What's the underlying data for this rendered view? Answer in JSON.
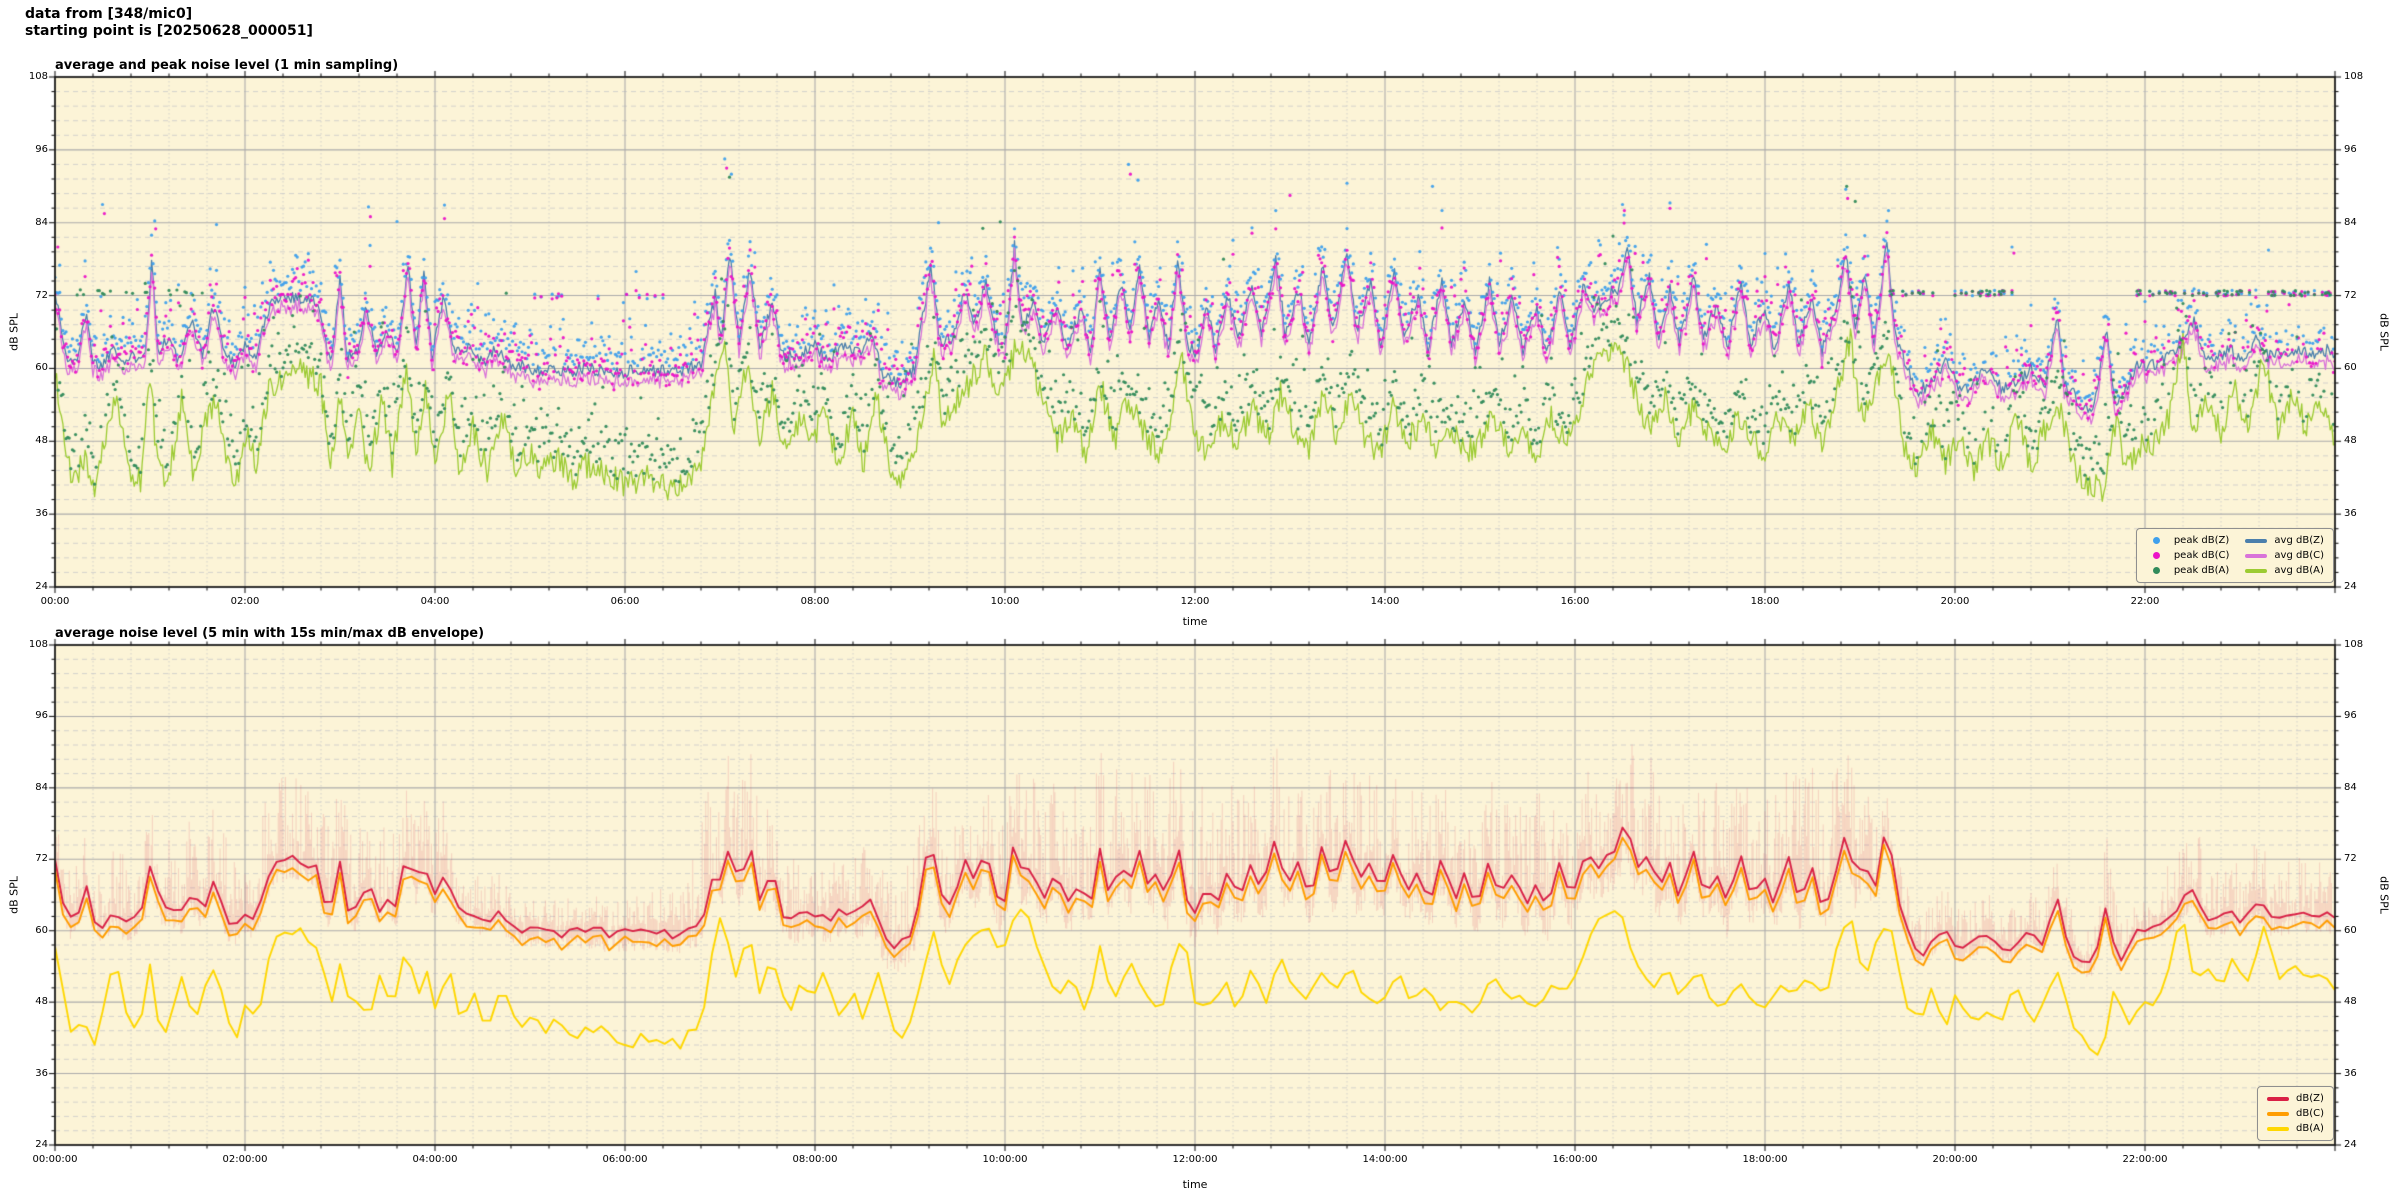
{
  "header": {
    "line1": "data from [348/mic0]",
    "line2": "starting point is [20250628_000051]"
  },
  "palette": {
    "figure_bg": "#ffffff",
    "axes_bg": "#FCF4D7",
    "grid_major": "#ABABAB",
    "grid_minor": "#C9C9C9",
    "spine": "#1A1A1A",
    "text": "#000000",
    "envelope": "rgba(217,32,69,0.15)"
  },
  "keypoints": {
    "avg_dbZ": [
      0,
      73,
      0.07,
      66,
      0.13,
      61,
      0.25,
      62,
      0.33,
      70,
      0.4,
      61,
      0.5,
      60.5,
      0.62,
      64,
      0.72,
      61,
      0.85,
      62,
      0.95,
      63,
      1.02,
      78,
      1.08,
      63,
      1.2,
      65,
      1.3,
      61,
      1.45,
      68,
      1.55,
      62,
      1.68,
      71,
      1.78,
      62.5,
      1.9,
      61,
      2.0,
      64,
      2.1,
      61.5,
      2.2,
      67,
      2.3,
      71.5,
      2.45,
      72,
      2.6,
      71.5,
      2.75,
      71,
      2.83,
      66,
      2.9,
      60.5,
      3.0,
      75,
      3.07,
      62,
      3.18,
      63,
      3.28,
      70,
      3.38,
      62.5,
      3.5,
      66,
      3.6,
      62,
      3.72,
      77,
      3.8,
      63,
      3.88,
      76,
      3.97,
      62,
      4.1,
      72,
      4.2,
      62.5,
      4.35,
      64,
      4.5,
      61,
      4.65,
      63,
      4.8,
      60.5,
      5.0,
      60,
      5.3,
      59.5,
      5.6,
      60,
      5.9,
      59.3,
      6.2,
      59.8,
      6.5,
      59.5,
      6.8,
      60.5,
      6.95,
      72,
      7.02,
      64,
      7.1,
      79,
      7.2,
      65,
      7.32,
      77,
      7.42,
      63.5,
      7.55,
      71,
      7.65,
      62,
      7.8,
      62,
      8.0,
      63.5,
      8.15,
      61.5,
      8.3,
      64,
      8.45,
      62.5,
      8.6,
      65.5,
      8.72,
      58.5,
      8.9,
      57.5,
      9.05,
      60,
      9.22,
      77,
      9.32,
      64,
      9.45,
      65,
      9.58,
      73.5,
      9.68,
      67,
      9.8,
      74,
      9.9,
      66,
      10.0,
      63,
      10.1,
      80,
      10.18,
      66,
      10.3,
      72,
      10.4,
      64,
      10.55,
      71,
      10.65,
      63,
      10.8,
      70,
      10.9,
      62,
      11.0,
      76,
      11.1,
      64,
      11.22,
      74,
      11.32,
      66,
      11.42,
      77,
      11.52,
      65,
      11.62,
      72,
      11.72,
      63,
      11.82,
      78,
      11.92,
      64,
      12.02,
      62,
      12.12,
      70,
      12.22,
      63,
      12.35,
      72,
      12.45,
      64,
      12.6,
      74,
      12.7,
      65,
      12.85,
      78,
      12.95,
      66,
      13.1,
      73,
      13.2,
      64,
      13.35,
      77,
      13.45,
      66,
      13.6,
      79,
      13.7,
      66,
      13.85,
      74,
      13.95,
      64,
      14.1,
      76,
      14.2,
      65,
      14.35,
      72,
      14.45,
      63,
      14.6,
      74,
      14.7,
      64,
      14.85,
      71,
      14.95,
      63,
      15.1,
      74,
      15.2,
      64,
      15.35,
      72,
      15.45,
      63,
      15.6,
      70,
      15.7,
      62,
      15.85,
      73,
      15.95,
      64,
      16.1,
      74,
      16.2,
      70,
      16.32,
      72,
      16.45,
      73,
      16.55,
      80,
      16.65,
      68,
      16.78,
      75,
      16.88,
      65,
      17.0,
      73,
      17.1,
      64,
      17.25,
      75,
      17.35,
      65,
      17.5,
      71,
      17.6,
      63,
      17.75,
      74,
      17.85,
      64,
      18.0,
      70,
      18.1,
      63,
      18.25,
      74,
      18.35,
      64,
      18.5,
      72,
      18.6,
      63,
      18.75,
      70,
      18.85,
      79,
      18.95,
      66,
      19.05,
      75,
      19.15,
      64,
      19.28,
      81,
      19.38,
      65,
      19.5,
      60,
      19.6,
      56,
      19.75,
      57.5,
      19.9,
      61,
      20.05,
      56.5,
      20.2,
      57.5,
      20.35,
      60,
      20.5,
      56.5,
      20.65,
      57.5,
      20.8,
      60,
      20.95,
      57,
      21.07,
      69,
      21.15,
      58,
      21.3,
      54.5,
      21.45,
      53.5,
      21.6,
      66,
      21.68,
      54,
      21.8,
      56.5,
      21.92,
      60.3,
      22.1,
      60.8,
      22.25,
      62,
      22.4,
      65,
      22.52,
      67.5,
      22.62,
      62.5,
      22.75,
      62,
      22.9,
      63,
      23.05,
      61.8,
      23.18,
      65.5,
      23.3,
      62,
      23.45,
      62.5,
      23.6,
      63.2,
      23.75,
      62.3,
      23.9,
      63,
      24,
      62.5
    ],
    "avg_dbA": [
      0,
      60,
      0.07,
      50,
      0.18,
      41,
      0.3,
      45,
      0.42,
      40.5,
      0.55,
      51,
      0.65,
      54,
      0.78,
      44,
      0.9,
      41,
      1.0,
      59,
      1.08,
      44,
      1.2,
      42,
      1.33,
      55,
      1.45,
      43,
      1.58,
      51,
      1.7,
      55,
      1.8,
      44,
      1.92,
      42,
      2.02,
      50,
      2.12,
      43,
      2.25,
      57,
      2.4,
      58.5,
      2.55,
      60,
      2.7,
      58.5,
      2.8,
      57,
      2.9,
      44,
      3.0,
      56,
      3.1,
      45,
      3.2,
      52,
      3.3,
      43,
      3.45,
      55,
      3.55,
      44,
      3.7,
      61,
      3.8,
      46,
      3.9,
      57,
      4.0,
      44,
      4.15,
      56,
      4.25,
      44,
      4.4,
      50,
      4.55,
      43,
      4.7,
      52,
      4.85,
      44,
      5.0,
      46,
      5.15,
      43,
      5.3,
      45,
      5.45,
      42,
      5.6,
      44,
      5.8,
      42.5,
      6.0,
      41,
      6.2,
      42,
      6.4,
      40.5,
      6.6,
      41,
      6.8,
      45,
      6.95,
      58,
      7.05,
      65,
      7.15,
      50,
      7.3,
      62,
      7.4,
      48,
      7.55,
      56,
      7.7,
      45,
      7.85,
      52,
      8.0,
      48,
      8.1,
      55,
      8.25,
      43,
      8.4,
      53,
      8.5,
      44,
      8.65,
      55,
      8.8,
      43,
      8.95,
      42,
      9.1,
      50,
      9.25,
      62,
      9.35,
      50,
      9.5,
      55,
      9.65,
      58,
      9.8,
      62,
      9.95,
      55,
      10.1,
      63,
      10.25,
      63,
      10.4,
      55,
      10.55,
      48,
      10.7,
      52,
      10.85,
      46,
      11.0,
      58,
      11.15,
      48,
      11.3,
      55,
      11.45,
      50,
      11.6,
      46,
      11.75,
      52,
      11.85,
      62,
      12.0,
      48,
      12.15,
      46,
      12.3,
      52,
      12.45,
      47,
      12.6,
      54,
      12.75,
      48,
      12.9,
      56,
      13.05,
      50,
      13.2,
      47,
      13.35,
      55,
      13.5,
      49,
      13.65,
      56,
      13.8,
      48,
      13.95,
      46,
      14.1,
      54,
      14.25,
      48,
      14.4,
      52,
      14.55,
      46,
      14.7,
      50,
      14.85,
      46,
      15.0,
      48,
      15.15,
      52,
      15.3,
      47,
      15.45,
      50,
      15.6,
      46,
      15.75,
      52,
      15.9,
      48,
      16.05,
      54,
      16.2,
      60,
      16.35,
      63,
      16.5,
      62,
      16.65,
      55,
      16.8,
      50,
      16.95,
      55,
      17.1,
      48,
      17.25,
      54,
      17.4,
      50,
      17.55,
      46,
      17.7,
      52,
      17.85,
      48,
      18.0,
      46,
      18.15,
      52,
      18.3,
      48,
      18.45,
      54,
      18.6,
      48,
      18.75,
      56,
      18.9,
      65,
      19.0,
      52,
      19.15,
      56,
      19.3,
      64,
      19.45,
      48,
      19.6,
      44,
      19.75,
      50,
      19.9,
      44,
      20.05,
      50,
      20.2,
      43,
      20.35,
      48,
      20.5,
      44,
      20.65,
      52,
      20.8,
      44,
      20.95,
      50,
      21.1,
      54,
      21.25,
      44,
      21.4,
      40.5,
      21.55,
      40,
      21.7,
      52,
      21.8,
      43,
      21.95,
      47.5,
      22.1,
      48,
      22.25,
      52,
      22.4,
      65,
      22.5,
      50,
      22.65,
      55,
      22.8,
      50,
      22.95,
      56,
      23.1,
      50,
      23.25,
      62,
      23.4,
      50,
      23.55,
      56,
      23.7,
      50,
      23.85,
      54,
      24,
      49
    ],
    "env_up": [
      0,
      8,
      0.5,
      9,
      1,
      12,
      1.5,
      12,
      2,
      13,
      2.5,
      13,
      3,
      14,
      3.5,
      13,
      4,
      12,
      4.4,
      8,
      4.8,
      5,
      5.5,
      5,
      6.2,
      5,
      6.6,
      8,
      6.9,
      18,
      7.3,
      16,
      7.7,
      10,
      8.2,
      9,
      8.7,
      10,
      9.2,
      12,
      9.6,
      13,
      10,
      13,
      10.5,
      16,
      11,
      19,
      11.5,
      18,
      12,
      17,
      12.5,
      17,
      13,
      17,
      13.5,
      16,
      14,
      15,
      14.5,
      14,
      15,
      14,
      15.5,
      15,
      16,
      16,
      16.5,
      17,
      17,
      16,
      17.5,
      15,
      18,
      16,
      18.4,
      19,
      18.8,
      17,
      19.1,
      12,
      19.3,
      7,
      19.7,
      6,
      20.2,
      6,
      20.7,
      6.5,
      21.1,
      7,
      21.4,
      5,
      21.6,
      14,
      21.8,
      4,
      22.05,
      3,
      22.3,
      12,
      22.55,
      10,
      22.8,
      9,
      23.2,
      9,
      23.6,
      9,
      24,
      9
    ],
    "env_dn": [
      0,
      3,
      2,
      4,
      4.5,
      2.5,
      6.5,
      3.5,
      9,
      5,
      12,
      6,
      16,
      6,
      18.8,
      6,
      19.4,
      2.5,
      21.5,
      2,
      22,
      2.5,
      22.5,
      3.5,
      24,
      3.5
    ]
  },
  "chart_data": [
    {
      "type": "line+scatter",
      "title": "average and peak noise level (1 min sampling)",
      "xlabel": "time",
      "ylabel": "dB SPL",
      "xlim": [
        0,
        24
      ],
      "ylim": [
        24,
        108
      ],
      "grid": true,
      "legend_position": "lower right",
      "xticks": {
        "values": [
          0,
          2,
          4,
          6,
          8,
          10,
          12,
          14,
          16,
          18,
          20,
          22
        ],
        "labels": [
          "00:00",
          "02:00",
          "04:00",
          "06:00",
          "08:00",
          "10:00",
          "12:00",
          "14:00",
          "16:00",
          "18:00",
          "20:00",
          "22:00"
        ]
      },
      "yticks": [
        24,
        36,
        48,
        60,
        72,
        84,
        96,
        108
      ],
      "minor_x_step": 0.4,
      "minor_y_step": 2.4,
      "sampling_minutes": 1,
      "seed": 1337,
      "series": [
        {
          "name": "avg dB(Z)",
          "color": "#4B7FAC",
          "kp": "avg_dbZ",
          "noise": 1.1,
          "width": 1.3
        },
        {
          "name": "avg dB(C)",
          "color": "#D973D9",
          "derive_from": "avg dB(Z)",
          "offset": -1.5,
          "noise": 0.7,
          "width": 1.3
        },
        {
          "name": "avg dB(A)",
          "color": "#9CCB32",
          "kp": "avg_dbA",
          "noise": 2.3,
          "width": 1.3
        }
      ],
      "scatter": [
        {
          "name": "peak dB(Z)",
          "color": "#3FA0EC",
          "base": "avg dB(Z)",
          "lift": 1.2,
          "tail": 2.0,
          "max": 94.5
        },
        {
          "name": "peak dB(C)",
          "color": "#EC13C8",
          "base": "peak dB(Z)",
          "drop_min": 0.8,
          "drop_rand": 3.2
        },
        {
          "name": "peak dB(A)",
          "color": "#318B5B",
          "base": "avg dB(A)",
          "lift": 2.0,
          "tail": 3.0,
          "max": 92
        }
      ],
      "peak_bands": [
        {
          "range": [
            0.2,
            1.6
          ],
          "apply": [
            "peak dB(A)"
          ],
          "value": 72.5,
          "prob": 0.3
        },
        {
          "range": [
            5.0,
            6.4
          ],
          "apply": [
            "peak dB(Z)",
            "peak dB(C)"
          ],
          "value": 71.9,
          "prob": 0.2
        },
        {
          "range": [
            19.3,
            20.7
          ],
          "apply": [
            "peak dB(Z)",
            "peak dB(C)",
            "peak dB(A)"
          ],
          "value": 72.4,
          "prob": 0.35
        },
        {
          "range": [
            21.9,
            24
          ],
          "apply": [
            "peak dB(Z)",
            "peak dB(C)",
            "peak dB(A)"
          ],
          "value": 72.4,
          "prob": 0.4
        }
      ],
      "peak_outliers": [
        {
          "series": "peak dB(Z)",
          "points": [
            [
              0.05,
              77
            ],
            [
              0.5,
              87
            ],
            [
              1.05,
              84.3
            ],
            [
              1.7,
              83.7
            ],
            [
              3.3,
              86.6
            ],
            [
              3.6,
              84.2
            ],
            [
              7.05,
              94.5
            ],
            [
              7.12,
              92
            ],
            [
              9.3,
              84
            ],
            [
              11.3,
              93.6
            ],
            [
              11.4,
              91
            ],
            [
              13.6,
              90.5
            ],
            [
              14.5,
              90
            ],
            [
              16.5,
              87
            ],
            [
              18.85,
              89.5
            ],
            [
              19.3,
              86
            ],
            [
              20.6,
              80
            ],
            [
              23.3,
              79.5
            ]
          ]
        },
        {
          "series": "peak dB(C)",
          "points": [
            [
              0.03,
              80
            ],
            [
              0.52,
              85.5
            ],
            [
              1.06,
              83
            ],
            [
              3.32,
              85
            ],
            [
              7.07,
              93
            ],
            [
              11.32,
              92
            ],
            [
              13.0,
              88.5
            ],
            [
              16.52,
              86
            ],
            [
              18.87,
              88
            ],
            [
              20.62,
              79
            ]
          ]
        },
        {
          "series": "peak dB(A)",
          "points": [
            [
              0.95,
              74
            ],
            [
              7.1,
              91.5
            ],
            [
              12.3,
              78
            ],
            [
              18.86,
              90
            ],
            [
              18.95,
              87.5
            ]
          ]
        }
      ],
      "legend": {
        "columns": [
          [
            {
              "label": "peak dB(Z)",
              "marker": "dot",
              "color": "#3FA0EC"
            },
            {
              "label": "peak dB(C)",
              "marker": "dot",
              "color": "#EC13C8"
            },
            {
              "label": "peak dB(A)",
              "marker": "dot",
              "color": "#318B5B"
            }
          ],
          [
            {
              "label": "avg dB(Z)",
              "marker": "line",
              "color": "#4B7FAC"
            },
            {
              "label": "avg dB(C)",
              "marker": "line",
              "color": "#D973D9"
            },
            {
              "label": "avg dB(A)",
              "marker": "line",
              "color": "#9CCB32"
            }
          ]
        ]
      }
    },
    {
      "type": "line+envelope",
      "title": "average noise level (5 min with 15s min/max dB envelope)",
      "xlabel": "time",
      "ylabel": "dB SPL",
      "xlim": [
        0,
        24
      ],
      "ylim": [
        24,
        108
      ],
      "grid": true,
      "legend_position": "lower right",
      "xticks": {
        "values": [
          0,
          2,
          4,
          6,
          8,
          10,
          12,
          14,
          16,
          18,
          20,
          22
        ],
        "labels": [
          "00:00:00",
          "02:00:00",
          "04:00:00",
          "06:00:00",
          "08:00:00",
          "10:00:00",
          "12:00:00",
          "14:00:00",
          "16:00:00",
          "18:00:00",
          "20:00:00",
          "22:00:00"
        ]
      },
      "yticks": [
        24,
        36,
        48,
        60,
        72,
        84,
        96,
        108
      ],
      "minor_x_step": 0.4,
      "minor_y_step": 2.4,
      "sampling_minutes": 5,
      "seed": 4242,
      "envelope": {
        "color": "rgba(217,32,69,0.15)",
        "up_kp": "env_up",
        "down_kp": "env_dn"
      },
      "series": [
        {
          "name": "dB(Z)",
          "color": "#D92045",
          "kp": "avg_dbZ",
          "smooth": true,
          "noise": 0.9,
          "width": 1.9
        },
        {
          "name": "dB(C)",
          "color": "#FF9D00",
          "derive_from": "dB(Z)",
          "offset": -1.7,
          "noise": 0.5,
          "width": 1.9
        },
        {
          "name": "dB(A)",
          "color": "#FFD700",
          "kp": "avg_dbA",
          "smooth": true,
          "noise": 1.2,
          "width": 1.9
        }
      ],
      "legend": {
        "columns": [
          [
            {
              "label": "dB(Z)",
              "marker": "line",
              "color": "#D92045"
            },
            {
              "label": "dB(C)",
              "marker": "line",
              "color": "#FF9D00"
            },
            {
              "label": "dB(A)",
              "marker": "line",
              "color": "#FFD700"
            }
          ]
        ]
      }
    }
  ]
}
